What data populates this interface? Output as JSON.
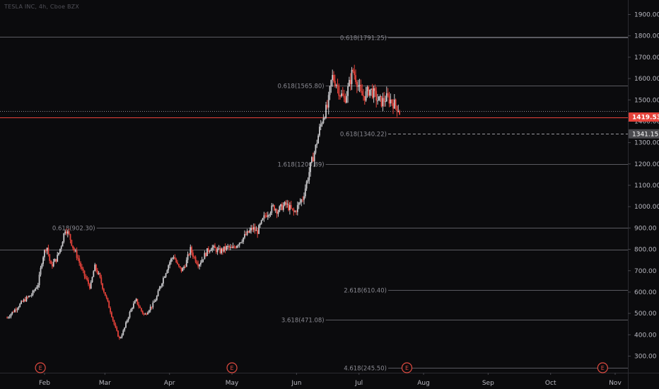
{
  "header": {
    "title": "TESLA INC, 4h, Cboe BZX"
  },
  "colors": {
    "background": "#0b0b0d",
    "up_candle": "#c9c9cc",
    "down_candle": "#e5423a",
    "price_line": "#e5423a",
    "fib_line": "#5a5a60",
    "earnings_marker": "#e04a40"
  },
  "chart_data": {
    "type": "candlestick",
    "title": "TESLA INC, 4h, Cboe BZX",
    "y_axis": {
      "min": 250,
      "max": 1950,
      "ticks": [
        300,
        400,
        500,
        600,
        700,
        800,
        900,
        1000,
        1100,
        1200,
        1300,
        1400,
        1500,
        1600,
        1700,
        1800,
        1900
      ],
      "tick_labels": [
        "300.00",
        "400.00",
        "500.00",
        "600.00",
        "700.00",
        "800.00",
        "900.00",
        "1000.00",
        "1100.00",
        "1200.00",
        "1300.00",
        "1400.00",
        "1500.00",
        "1600.00",
        "1700.00",
        "1800.00",
        "1900.00"
      ],
      "position": "right"
    },
    "x_axis": {
      "months": [
        {
          "label": "Feb",
          "day": 30
        },
        {
          "label": "Mar",
          "day": 59
        },
        {
          "label": "Apr",
          "day": 90
        },
        {
          "label": "May",
          "day": 120
        },
        {
          "label": "Jun",
          "day": 151
        },
        {
          "label": "Jul",
          "day": 181
        },
        {
          "label": "Aug",
          "day": 212
        },
        {
          "label": "Sep",
          "day": 243
        },
        {
          "label": "Oct",
          "day": 273
        },
        {
          "label": "Nov",
          "day": 304
        }
      ],
      "day_range": [
        12,
        309
      ]
    },
    "price_markers": [
      {
        "label": "1419.53",
        "value": 1419.53,
        "style": "current"
      },
      {
        "label": "1341.15",
        "value": 1341.15,
        "style": "level"
      }
    ],
    "horizontal_lines": [
      {
        "value": 1797,
        "style": "solid"
      },
      {
        "value": 1447,
        "style": "dotted"
      },
      {
        "value": 797,
        "style": "solid"
      }
    ],
    "fib_levels": [
      {
        "label": "0.618(1791.25)",
        "value": 1791.25,
        "start_day": 195
      },
      {
        "label": "0.618(1565.80)",
        "value": 1565.8,
        "start_day": 165
      },
      {
        "label": "0.618(1340.22)",
        "value": 1340.22,
        "start_day": 195
      },
      {
        "label": "1.618(1200.89)",
        "value": 1200.89,
        "start_day": 165
      },
      {
        "label": "0.618(902.30)",
        "value": 902.3,
        "start_day": 55
      },
      {
        "label": "2.618(610.40)",
        "value": 610.4,
        "start_day": 195
      },
      {
        "label": "3.618(471.08)",
        "value": 471.08,
        "start_day": 165
      },
      {
        "label": "4.618(245.50)",
        "value": 245.5,
        "start_day": 195
      }
    ],
    "earnings_markers": [
      {
        "label": "E",
        "day": 28
      },
      {
        "label": "E",
        "day": 120
      },
      {
        "label": "E",
        "day": 204
      },
      {
        "label": "E",
        "day": 298
      }
    ],
    "price_path": [
      [
        12,
        480
      ],
      [
        16,
        520
      ],
      [
        20,
        560
      ],
      [
        24,
        590
      ],
      [
        27,
        640
      ],
      [
        29,
        760
      ],
      [
        31,
        820
      ],
      [
        33,
        720
      ],
      [
        36,
        760
      ],
      [
        38,
        820
      ],
      [
        40,
        900
      ],
      [
        42,
        860
      ],
      [
        44,
        800
      ],
      [
        46,
        760
      ],
      [
        48,
        700
      ],
      [
        50,
        660
      ],
      [
        52,
        620
      ],
      [
        54,
        720
      ],
      [
        56,
        680
      ],
      [
        58,
        620
      ],
      [
        60,
        560
      ],
      [
        62,
        500
      ],
      [
        64,
        430
      ],
      [
        66,
        380
      ],
      [
        68,
        420
      ],
      [
        70,
        480
      ],
      [
        72,
        530
      ],
      [
        74,
        560
      ],
      [
        76,
        520
      ],
      [
        78,
        490
      ],
      [
        80,
        520
      ],
      [
        82,
        540
      ],
      [
        84,
        580
      ],
      [
        86,
        640
      ],
      [
        88,
        690
      ],
      [
        90,
        740
      ],
      [
        92,
        770
      ],
      [
        94,
        720
      ],
      [
        96,
        700
      ],
      [
        98,
        740
      ],
      [
        100,
        800
      ],
      [
        102,
        760
      ],
      [
        104,
        730
      ],
      [
        106,
        760
      ],
      [
        108,
        790
      ],
      [
        110,
        810
      ],
      [
        112,
        800
      ],
      [
        114,
        790
      ],
      [
        116,
        800
      ],
      [
        118,
        810
      ],
      [
        120,
        800
      ],
      [
        122,
        820
      ],
      [
        124,
        840
      ],
      [
        126,
        860
      ],
      [
        128,
        880
      ],
      [
        130,
        900
      ],
      [
        132,
        880
      ],
      [
        134,
        920
      ],
      [
        136,
        960
      ],
      [
        138,
        980
      ],
      [
        140,
        1000
      ],
      [
        142,
        980
      ],
      [
        144,
        1000
      ],
      [
        146,
        1010
      ],
      [
        148,
        990
      ],
      [
        150,
        970
      ],
      [
        152,
        1010
      ],
      [
        154,
        1040
      ],
      [
        156,
        1120
      ],
      [
        158,
        1200
      ],
      [
        160,
        1270
      ],
      [
        162,
        1360
      ],
      [
        164,
        1430
      ],
      [
        166,
        1470
      ],
      [
        168,
        1610
      ],
      [
        170,
        1580
      ],
      [
        172,
        1530
      ],
      [
        174,
        1500
      ],
      [
        176,
        1560
      ],
      [
        178,
        1640
      ],
      [
        180,
        1590
      ],
      [
        182,
        1520
      ],
      [
        184,
        1520
      ],
      [
        186,
        1550
      ],
      [
        188,
        1530
      ],
      [
        190,
        1500
      ],
      [
        192,
        1490
      ],
      [
        194,
        1510
      ],
      [
        196,
        1500
      ],
      [
        198,
        1480
      ],
      [
        200,
        1460
      ],
      [
        201,
        1420
      ]
    ]
  }
}
